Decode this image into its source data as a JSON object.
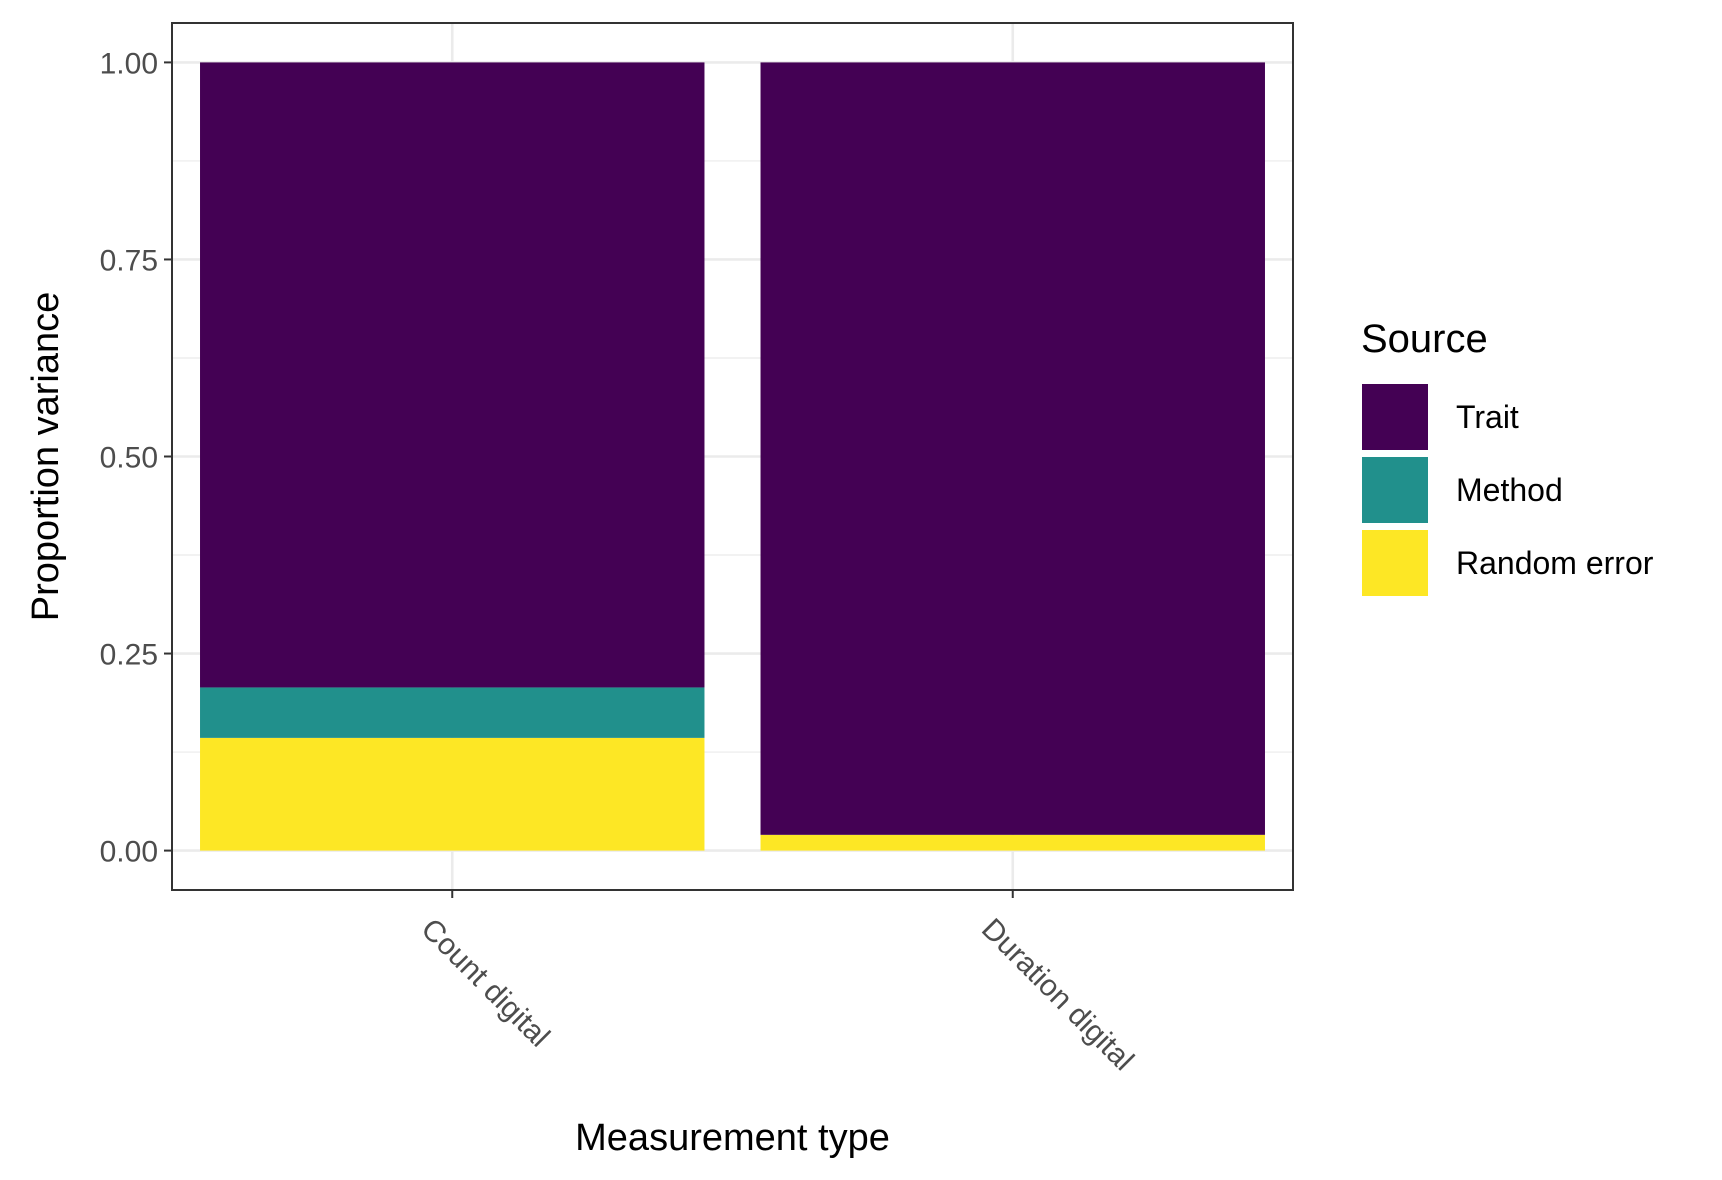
{
  "chart_data": {
    "type": "bar",
    "stacked": true,
    "title": "",
    "xlabel": "Measurement type",
    "ylabel": "Proportion variance",
    "ylim": [
      -0.05,
      1.05
    ],
    "y_ticks": [
      0.0,
      0.25,
      0.5,
      0.75,
      1.0
    ],
    "y_tick_labels": [
      "0.00",
      "0.25",
      "0.50",
      "0.75",
      "1.00"
    ],
    "categories": [
      "Count digital",
      "Duration digital"
    ],
    "series": [
      {
        "name": "Random error",
        "values": [
          0.143,
          0.02
        ]
      },
      {
        "name": "Method",
        "values": [
          0.064,
          0.0
        ]
      },
      {
        "name": "Trait",
        "values": [
          0.793,
          0.98
        ]
      }
    ],
    "legend": {
      "title": "Source",
      "position": "right",
      "items": [
        "Trait",
        "Method",
        "Random error"
      ]
    },
    "colors": {
      "Trait": "#440154",
      "Method": "#21908C",
      "Random error": "#FDE725"
    },
    "grid": true
  }
}
